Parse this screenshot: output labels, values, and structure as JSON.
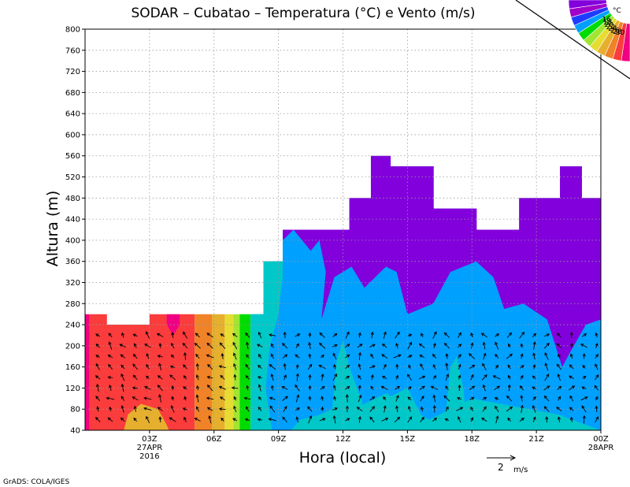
{
  "chart_data": {
    "type": "heatmap",
    "title": "SODAR – Cubatao – Temperatura (°C) e Vento (m/s)",
    "xlabel": "Hora (local)",
    "ylabel": "Altura (m)",
    "credit": "GrADS: COLA/IGES",
    "ylim": [
      40,
      800
    ],
    "yticks": [
      40,
      80,
      120,
      160,
      200,
      240,
      280,
      320,
      360,
      400,
      440,
      480,
      520,
      560,
      600,
      640,
      680,
      720,
      760,
      800
    ],
    "xlim_hours": [
      0,
      24
    ],
    "xticks": [
      {
        "hour": 3,
        "label": "03Z",
        "sub1": "27APR",
        "sub2": "2016"
      },
      {
        "hour": 6,
        "label": "06Z"
      },
      {
        "hour": 9,
        "label": "09Z"
      },
      {
        "hour": 12,
        "label": "12Z"
      },
      {
        "hour": 15,
        "label": "15Z"
      },
      {
        "hour": 18,
        "label": "18Z"
      },
      {
        "hour": 21,
        "label": "21Z"
      },
      {
        "hour": 24,
        "label": "00Z",
        "sub1": "28APR"
      }
    ],
    "grid": true,
    "colorbar": {
      "unit": "°C",
      "levels": [
        16,
        18,
        20,
        22,
        24,
        26,
        28,
        30
      ],
      "colors": [
        "#8200dc",
        "#a000c8",
        "#1e3cff",
        "#00a0ff",
        "#00dc00",
        "#a0e632",
        "#e6dc32",
        "#e6af2d",
        "#f08228",
        "#fa3c3c",
        "#f00082"
      ]
    },
    "vector_legend": {
      "value": "2",
      "unit": "m/s"
    },
    "data_top_height_m": [
      {
        "from_hour": 0,
        "to_hour": 1,
        "height": 260
      },
      {
        "from_hour": 1,
        "to_hour": 3,
        "height": 240
      },
      {
        "from_hour": 3,
        "to_hour": 7,
        "height": 260
      },
      {
        "from_hour": 7,
        "to_hour": 7.3,
        "height": 260
      },
      {
        "from_hour": 7.3,
        "to_hour": 8.3,
        "height": 260
      },
      {
        "from_hour": 8.3,
        "to_hour": 9.2,
        "height": 360
      },
      {
        "from_hour": 9.2,
        "to_hour": 11.5,
        "height": 420
      },
      {
        "from_hour": 11.5,
        "to_hour": 12.3,
        "height": 420
      },
      {
        "from_hour": 12.3,
        "to_hour": 13.3,
        "height": 480
      },
      {
        "from_hour": 13.3,
        "to_hour": 14.2,
        "height": 560
      },
      {
        "from_hour": 14.2,
        "to_hour": 16.2,
        "height": 540
      },
      {
        "from_hour": 16.2,
        "to_hour": 18.2,
        "height": 460
      },
      {
        "from_hour": 18.2,
        "to_hour": 20.2,
        "height": 420
      },
      {
        "from_hour": 20.2,
        "to_hour": 22.1,
        "height": 480
      },
      {
        "from_hour": 22.1,
        "to_hour": 23.1,
        "height": 540
      },
      {
        "from_hour": 23.1,
        "to_hour": 24,
        "height": 480
      }
    ],
    "temperature_regions": [
      {
        "label": "30+",
        "color": "#f00082",
        "hours": [
          0,
          0.2
        ],
        "heights": [
          40,
          260
        ]
      },
      {
        "label": "28-30",
        "color": "#fa3c3c",
        "hours": [
          0.2,
          5.1
        ],
        "heights": [
          40,
          260
        ]
      },
      {
        "label": "26-28",
        "color": "#f08228",
        "hours": [
          5.1,
          5.9
        ],
        "heights": [
          40,
          260
        ]
      },
      {
        "label": "24-26",
        "color": "#e6af2d",
        "hours": [
          5.9,
          6.5
        ],
        "heights": [
          40,
          260
        ]
      },
      {
        "label": "22-24",
        "color": "#e6dc32",
        "hours": [
          6.5,
          6.9
        ],
        "heights": [
          40,
          260
        ]
      },
      {
        "label": "20-22",
        "color": "#a0e632",
        "hours": [
          6.9,
          7.2
        ],
        "heights": [
          40,
          260
        ]
      },
      {
        "label": "18-20",
        "color": "#00dc00",
        "hours": [
          7.2,
          7.7
        ],
        "heights": [
          40,
          260
        ]
      },
      {
        "label": "16-18",
        "color": "#00c8c8",
        "hours": [
          7.7,
          24
        ],
        "heights": [
          40,
          560
        ]
      },
      {
        "label": "14-16",
        "color": "#00a0ff",
        "hours": [
          8.7,
          24
        ],
        "heights": [
          40,
          420
        ]
      },
      {
        "label": "<14",
        "color": "#8200dc",
        "hours": [
          9.2,
          24
        ],
        "heights": [
          250,
          560
        ]
      }
    ]
  }
}
